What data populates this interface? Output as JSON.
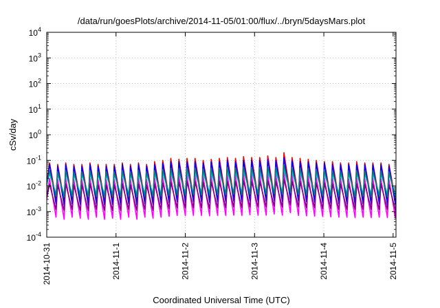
{
  "chart_data": {
    "type": "line",
    "title": "/data/run/goesPlots/archive/2014-11-05/01:00/flux/../bryn/5daysMars.plot",
    "xlabel": "Coordinated Universal Time (UTC)",
    "ylabel": "cSv/day",
    "yscale": "log",
    "ylim": [
      0.0001,
      10000
    ],
    "xlim": [
      "2014-10-31 00:00",
      "2014-11-05 01:00"
    ],
    "grid": true,
    "legend": "none",
    "y_ticks": [
      {
        "base": "10",
        "exp": "-4"
      },
      {
        "base": "10",
        "exp": "-3"
      },
      {
        "base": "10",
        "exp": "-2"
      },
      {
        "base": "10",
        "exp": "-1"
      },
      {
        "base": "10",
        "exp": "0"
      },
      {
        "base": "10",
        "exp": "1"
      },
      {
        "base": "10",
        "exp": "2"
      },
      {
        "base": "10",
        "exp": "3"
      },
      {
        "base": "10",
        "exp": "4"
      }
    ],
    "x_ticks": [
      "2014-10-31",
      "2014-11-1",
      "2014-11-2",
      "2014-11-3",
      "2014-11-4",
      "2014-11-5"
    ],
    "orbit_period_hours": 2.8,
    "series": [
      {
        "color": "#ff0000",
        "peak_values": [
          0.08,
          0.07,
          0.08,
          0.07,
          0.07,
          0.08,
          0.07,
          0.07,
          0.07,
          0.08,
          0.07,
          0.08,
          0.07,
          0.09,
          0.1,
          0.12,
          0.11,
          0.12,
          0.12,
          0.1,
          0.11,
          0.12,
          0.13,
          0.12,
          0.14,
          0.13,
          0.13,
          0.15,
          0.13,
          0.2,
          0.13,
          0.12,
          0.11,
          0.1,
          0.09,
          0.09,
          0.08,
          0.08,
          0.09,
          0.08,
          0.08,
          0.08,
          0.07,
          0.08
        ],
        "trough_values": [
          0.003,
          0.0026,
          0.0028,
          0.003,
          0.0028,
          0.0029,
          0.0027,
          0.003,
          0.0028,
          0.003,
          0.0028,
          0.003,
          0.0029,
          0.003,
          0.0033,
          0.0035,
          0.0034,
          0.0036,
          0.0035,
          0.0034,
          0.0035,
          0.0036,
          0.0037,
          0.0036,
          0.0038,
          0.0037,
          0.0037,
          0.004,
          0.0037,
          0.0045,
          0.0036,
          0.0035,
          0.0034,
          0.0032,
          0.0031,
          0.003,
          0.0029,
          0.0028,
          0.003,
          0.0028,
          0.0029,
          0.0028,
          0.0027,
          0.0028
        ]
      },
      {
        "color": "#0000ff",
        "peak_values": [
          0.07,
          0.06,
          0.07,
          0.06,
          0.06,
          0.07,
          0.06,
          0.06,
          0.06,
          0.07,
          0.06,
          0.07,
          0.06,
          0.07,
          0.08,
          0.09,
          0.09,
          0.09,
          0.09,
          0.08,
          0.09,
          0.09,
          0.1,
          0.09,
          0.1,
          0.1,
          0.1,
          0.11,
          0.1,
          0.13,
          0.1,
          0.09,
          0.09,
          0.08,
          0.08,
          0.07,
          0.07,
          0.07,
          0.07,
          0.07,
          0.07,
          0.07,
          0.06,
          0.07
        ],
        "trough_values": [
          0.002,
          0.0018,
          0.002,
          0.0019,
          0.0018,
          0.002,
          0.0018,
          0.0019,
          0.0018,
          0.002,
          0.0018,
          0.002,
          0.0019,
          0.002,
          0.0022,
          0.0024,
          0.0023,
          0.0024,
          0.0024,
          0.0023,
          0.0024,
          0.0024,
          0.0025,
          0.0024,
          0.0026,
          0.0025,
          0.0025,
          0.0027,
          0.0025,
          0.003,
          0.0025,
          0.0024,
          0.0023,
          0.0022,
          0.0021,
          0.002,
          0.002,
          0.0019,
          0.002,
          0.0019,
          0.002,
          0.0019,
          0.0018,
          0.0019
        ]
      },
      {
        "color": "#00cccc",
        "peak_values": [
          0.03,
          0.028,
          0.03,
          0.028,
          0.028,
          0.03,
          0.028,
          0.028,
          0.028,
          0.03,
          0.028,
          0.03,
          0.028,
          0.03,
          0.032,
          0.034,
          0.034,
          0.035,
          0.035,
          0.033,
          0.034,
          0.035,
          0.036,
          0.035,
          0.037,
          0.036,
          0.036,
          0.038,
          0.036,
          0.042,
          0.036,
          0.035,
          0.034,
          0.032,
          0.031,
          0.03,
          0.03,
          0.029,
          0.03,
          0.029,
          0.03,
          0.029,
          0.028,
          0.029
        ],
        "trough_values": [
          0.005,
          0.0046,
          0.0048,
          0.005,
          0.0048,
          0.0049,
          0.0047,
          0.005,
          0.0048,
          0.005,
          0.0048,
          0.005,
          0.0049,
          0.005,
          0.0052,
          0.0054,
          0.0053,
          0.0055,
          0.0054,
          0.0053,
          0.0054,
          0.0055,
          0.0056,
          0.0055,
          0.0057,
          0.0056,
          0.0056,
          0.0058,
          0.0056,
          0.006,
          0.0055,
          0.0054,
          0.0053,
          0.0052,
          0.0051,
          0.005,
          0.0049,
          0.0048,
          0.005,
          0.0048,
          0.0049,
          0.0048,
          0.0047,
          0.0048
        ]
      },
      {
        "color": "#ff00ff",
        "peak_values": [
          0.02,
          0.018,
          0.02,
          0.018,
          0.018,
          0.02,
          0.018,
          0.018,
          0.018,
          0.02,
          0.018,
          0.02,
          0.018,
          0.02,
          0.022,
          0.024,
          0.024,
          0.025,
          0.025,
          0.023,
          0.024,
          0.025,
          0.026,
          0.025,
          0.027,
          0.026,
          0.026,
          0.028,
          0.026,
          0.032,
          0.026,
          0.025,
          0.024,
          0.022,
          0.021,
          0.02,
          0.02,
          0.019,
          0.02,
          0.019,
          0.02,
          0.019,
          0.018,
          0.019
        ],
        "trough_values": [
          0.0006,
          0.0005,
          0.0006,
          0.00055,
          0.0005,
          0.0006,
          0.0005,
          0.00055,
          0.0005,
          0.0006,
          0.0005,
          0.0006,
          0.00055,
          0.0006,
          0.00065,
          0.0007,
          0.0007,
          0.0007,
          0.0007,
          0.00068,
          0.0007,
          0.0007,
          0.00072,
          0.0007,
          0.00075,
          0.00072,
          0.00072,
          0.0008,
          0.00072,
          0.0009,
          0.0007,
          0.00068,
          0.00066,
          0.00064,
          0.00062,
          0.0006,
          0.0006,
          0.00058,
          0.0006,
          0.00058,
          0.0006,
          0.00058,
          0.00056,
          0.00058
        ]
      },
      {
        "color": "#7f007f",
        "peak_values": [
          0.012,
          0.011,
          0.012,
          0.011,
          0.011,
          0.012,
          0.011,
          0.011,
          0.011,
          0.012,
          0.011,
          0.012,
          0.011,
          0.012,
          0.013,
          0.014,
          0.014,
          0.015,
          0.015,
          0.014,
          0.014,
          0.015,
          0.015,
          0.015,
          0.016,
          0.015,
          0.015,
          0.016,
          0.015,
          0.018,
          0.015,
          0.015,
          0.014,
          0.013,
          0.013,
          0.012,
          0.012,
          0.012,
          0.012,
          0.012,
          0.012,
          0.012,
          0.011,
          0.012
        ],
        "trough_values": [
          0.0012,
          0.0011,
          0.0012,
          0.0011,
          0.0011,
          0.0012,
          0.0011,
          0.0011,
          0.0011,
          0.0012,
          0.0011,
          0.0012,
          0.0011,
          0.0012,
          0.0013,
          0.0014,
          0.0014,
          0.0014,
          0.0014,
          0.0013,
          0.0014,
          0.0014,
          0.0015,
          0.0014,
          0.0015,
          0.0015,
          0.0015,
          0.0016,
          0.0015,
          0.0018,
          0.0015,
          0.0014,
          0.0014,
          0.0013,
          0.0013,
          0.0012,
          0.0012,
          0.0012,
          0.0012,
          0.0012,
          0.0012,
          0.0012,
          0.0011,
          0.0012
        ]
      },
      {
        "color": "#008080",
        "peak_values": [
          0.04,
          0.036,
          0.04,
          0.036,
          0.036,
          0.04,
          0.036,
          0.036,
          0.036,
          0.04,
          0.036,
          0.04,
          0.036,
          0.04,
          0.044,
          0.048,
          0.047,
          0.05,
          0.05,
          0.046,
          0.048,
          0.05,
          0.052,
          0.05,
          0.054,
          0.052,
          0.052,
          0.056,
          0.052,
          0.065,
          0.052,
          0.05,
          0.048,
          0.044,
          0.042,
          0.04,
          0.04,
          0.038,
          0.04,
          0.038,
          0.04,
          0.038,
          0.036,
          0.038
        ],
        "trough_values": [
          0.004,
          0.0037,
          0.0039,
          0.004,
          0.0038,
          0.0039,
          0.0037,
          0.004,
          0.0038,
          0.004,
          0.0038,
          0.004,
          0.0039,
          0.004,
          0.0043,
          0.0045,
          0.0044,
          0.0046,
          0.0045,
          0.0044,
          0.0045,
          0.0046,
          0.0047,
          0.0046,
          0.0048,
          0.0047,
          0.0047,
          0.005,
          0.0047,
          0.0055,
          0.0046,
          0.0045,
          0.0044,
          0.0042,
          0.0041,
          0.004,
          0.0039,
          0.0038,
          0.004,
          0.0038,
          0.0039,
          0.0038,
          0.0037,
          0.0038
        ]
      }
    ]
  }
}
